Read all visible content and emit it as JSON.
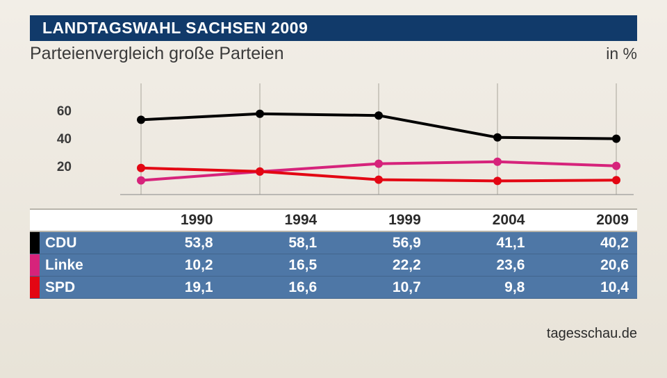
{
  "title": "LANDTAGSWAHL SACHSEN 2009",
  "subtitle": "Parteienvergleich große Parteien",
  "unit": "in %",
  "source": "tagesschau.de",
  "chart": {
    "type": "line",
    "categories": [
      "1990",
      "1994",
      "1999",
      "2004",
      "2009"
    ],
    "ylim": [
      0,
      80
    ],
    "yticks": [
      20,
      40,
      60
    ],
    "background_color": "#f0ece3",
    "gridline_color": "#a8a49a",
    "axis_color": "#888888",
    "line_width": 4,
    "marker_radius": 6,
    "series": [
      {
        "name": "CDU",
        "color": "#000000",
        "values": [
          53.8,
          58.1,
          56.9,
          41.1,
          40.2
        ]
      },
      {
        "name": "Linke",
        "color": "#d6237b",
        "values": [
          10.2,
          16.5,
          22.2,
          23.6,
          20.6
        ]
      },
      {
        "name": "SPD",
        "color": "#e30613",
        "values": [
          19.1,
          16.6,
          10.7,
          9.8,
          10.4
        ]
      }
    ]
  },
  "table": {
    "columns": [
      "1990",
      "1994",
      "1999",
      "2004",
      "2009"
    ],
    "header_bg": "#ffffff",
    "row_bg": "#4e77a6",
    "rows": [
      {
        "swatch": "#000000",
        "name": "CDU",
        "cells": [
          "53,8",
          "58,1",
          "56,9",
          "41,1",
          "40,2"
        ]
      },
      {
        "swatch": "#d6237b",
        "name": "Linke",
        "cells": [
          "10,2",
          "16,5",
          "22,2",
          "23,6",
          "20,6"
        ]
      },
      {
        "swatch": "#e30613",
        "name": "SPD",
        "cells": [
          "19,1",
          "16,6",
          "10,7",
          "9,8",
          "10,4"
        ]
      }
    ]
  }
}
